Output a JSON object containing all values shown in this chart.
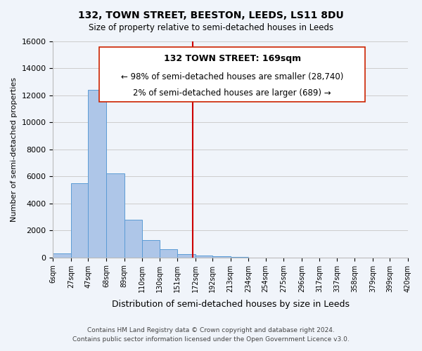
{
  "title": "132, TOWN STREET, BEESTON, LEEDS, LS11 8DU",
  "subtitle": "Size of property relative to semi-detached houses in Leeds",
  "xlabel": "Distribution of semi-detached houses by size in Leeds",
  "ylabel": "Number of semi-detached properties",
  "bin_labels": [
    "6sqm",
    "27sqm",
    "47sqm",
    "68sqm",
    "89sqm",
    "110sqm",
    "130sqm",
    "151sqm",
    "172sqm",
    "192sqm",
    "213sqm",
    "234sqm",
    "254sqm",
    "275sqm",
    "296sqm",
    "317sqm",
    "337sqm",
    "358sqm",
    "379sqm",
    "399sqm",
    "420sqm"
  ],
  "bin_edges": [
    6,
    27,
    47,
    68,
    89,
    110,
    130,
    151,
    172,
    192,
    213,
    234,
    254,
    275,
    296,
    317,
    337,
    358,
    379,
    399,
    420
  ],
  "bar_heights": [
    300,
    5500,
    12400,
    6200,
    2800,
    1300,
    600,
    250,
    150,
    100,
    60,
    0,
    0,
    0,
    0,
    0,
    0,
    0,
    0,
    0
  ],
  "bar_color": "#aec6e8",
  "bar_edge_color": "#5b9bd5",
  "vline_x": 169,
  "vline_color": "#cc0000",
  "ylim": [
    0,
    16000
  ],
  "yticks": [
    0,
    2000,
    4000,
    6000,
    8000,
    10000,
    12000,
    14000,
    16000
  ],
  "annotation_title": "132 TOWN STREET: 169sqm",
  "annotation_line1": "← 98% of semi-detached houses are smaller (28,740)",
  "annotation_line2": "2% of semi-detached houses are larger (689) →",
  "footer_line1": "Contains HM Land Registry data © Crown copyright and database right 2024.",
  "footer_line2": "Contains public sector information licensed under the Open Government Licence v3.0.",
  "bg_color": "#f0f4fa",
  "box_color": "#ffffff",
  "grid_color": "#cccccc"
}
